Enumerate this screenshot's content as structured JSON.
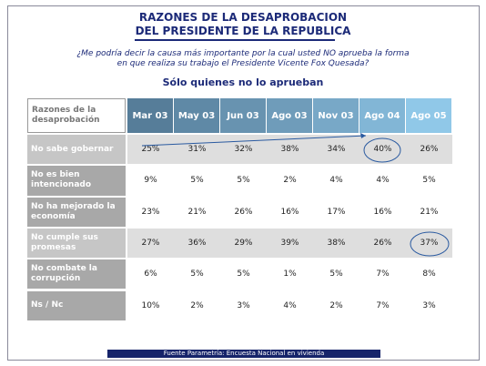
{
  "header": {
    "title_lines": [
      "RAZONES DE LA DESAPROBACION",
      "DEL PRESIDENTE DE LA REPUBLICA"
    ],
    "question_lines": [
      "¿Me podría decir la causa más importante por la cual usted NO aprueba la forma",
      "en que realiza su trabajo el Presidente Vicente Fox Quesada?"
    ],
    "subtitle": "Sólo quienes no lo aprueban"
  },
  "table": {
    "corner": "Razones de la desaprobación",
    "columns": [
      "Mar 03",
      "May 03",
      "Jun 03",
      "Ago 03",
      "Nov 03",
      "Ago 04",
      "Ago 05"
    ],
    "rows": [
      {
        "label": "No sabe gobernar",
        "values": [
          "25%",
          "31%",
          "32%",
          "38%",
          "34%",
          "40%",
          "26%"
        ]
      },
      {
        "label": "No es bien intencionado",
        "values": [
          "9%",
          "5%",
          "5%",
          "2%",
          "4%",
          "4%",
          "5%"
        ]
      },
      {
        "label": "No ha mejorado la economía",
        "values": [
          "23%",
          "21%",
          "26%",
          "16%",
          "17%",
          "16%",
          "21%"
        ]
      },
      {
        "label": "No cumple sus promesas",
        "values": [
          "27%",
          "36%",
          "29%",
          "39%",
          "38%",
          "26%",
          "37%"
        ]
      },
      {
        "label": "No combate la corrupción",
        "values": [
          "6%",
          "5%",
          "5%",
          "1%",
          "5%",
          "7%",
          "8%"
        ]
      },
      {
        "label": "Ns / Nc",
        "values": [
          "10%",
          "2%",
          "3%",
          "4%",
          "2%",
          "7%",
          "3%"
        ]
      }
    ]
  },
  "footer": "Fuente Parametría: Encuesta Nacional en vivienda"
}
